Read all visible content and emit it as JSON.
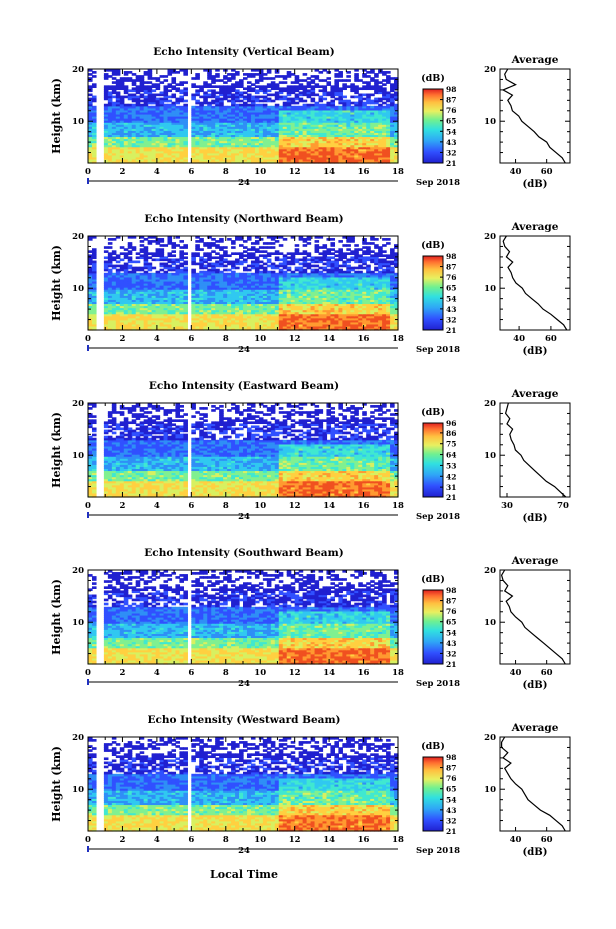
{
  "figure": {
    "x_axis_label": "Local Time",
    "date_label": "Sep 2018",
    "day_label": "24",
    "colorbar_unit": "(dB)",
    "average_title": "Average",
    "average_unit": "(dB)"
  },
  "chart_data": [
    {
      "type": "heatmap",
      "title": "Echo Intensity (Vertical Beam)",
      "ylabel": "Height (km)",
      "xlim": [
        0,
        18
      ],
      "ylim": [
        2,
        20
      ],
      "x_ticks": [
        0,
        2,
        4,
        6,
        8,
        10,
        12,
        14,
        16,
        18
      ],
      "y_ticks": [
        10,
        20
      ],
      "data_gaps_hours": [
        [
          0.55,
          0.85
        ],
        [
          5.8,
          6.1
        ]
      ],
      "colorbar": {
        "ticks": [
          21,
          32,
          43,
          54,
          65,
          76,
          87,
          98
        ],
        "range": [
          21,
          98
        ]
      },
      "average_profile": {
        "xticks": [
          40,
          60
        ],
        "xlim": [
          30,
          75
        ],
        "height_km": [
          2,
          3,
          4,
          5,
          6,
          7,
          8,
          9,
          10,
          11,
          12,
          13,
          14,
          15,
          16,
          17,
          18,
          19,
          20
        ],
        "intensity_db": [
          72,
          70,
          66,
          62,
          60,
          55,
          52,
          48,
          44,
          42,
          38,
          37,
          35,
          38,
          32,
          40,
          34,
          33,
          35
        ]
      }
    },
    {
      "type": "heatmap",
      "title": "Echo Intensity (Northward Beam)",
      "ylabel": "Height (km)",
      "xlim": [
        0,
        18
      ],
      "ylim": [
        2,
        20
      ],
      "x_ticks": [
        0,
        2,
        4,
        6,
        8,
        10,
        12,
        14,
        16,
        18
      ],
      "y_ticks": [
        10,
        20
      ],
      "data_gaps_hours": [
        [
          0.55,
          0.85
        ],
        [
          5.8,
          6.1
        ]
      ],
      "colorbar": {
        "ticks": [
          21,
          32,
          43,
          54,
          65,
          76,
          87,
          98
        ],
        "range": [
          21,
          98
        ]
      },
      "average_profile": {
        "xticks": [
          40,
          60
        ],
        "xlim": [
          28,
          72
        ],
        "height_km": [
          2,
          3,
          4,
          5,
          6,
          7,
          8,
          9,
          10,
          11,
          12,
          13,
          14,
          15,
          16,
          17,
          18,
          19,
          20
        ],
        "intensity_db": [
          70,
          68,
          64,
          60,
          55,
          52,
          48,
          44,
          42,
          38,
          36,
          35,
          33,
          36,
          32,
          34,
          31,
          30,
          32
        ]
      }
    },
    {
      "type": "heatmap",
      "title": "Echo Intensity (Eastward Beam)",
      "ylabel": "Height (km)",
      "xlim": [
        0,
        18
      ],
      "ylim": [
        2,
        20
      ],
      "x_ticks": [
        0,
        2,
        4,
        6,
        8,
        10,
        12,
        14,
        16,
        18
      ],
      "y_ticks": [
        10,
        20
      ],
      "data_gaps_hours": [
        [
          0.55,
          0.85
        ],
        [
          5.8,
          6.1
        ]
      ],
      "colorbar": {
        "ticks": [
          21,
          31,
          42,
          53,
          64,
          75,
          86,
          96
        ],
        "range": [
          21,
          96
        ]
      },
      "average_profile": {
        "xticks": [
          30,
          70
        ],
        "xlim": [
          25,
          75
        ],
        "height_km": [
          2,
          3,
          4,
          5,
          6,
          7,
          8,
          9,
          10,
          11,
          12,
          13,
          14,
          15,
          16,
          17,
          18,
          19,
          20
        ],
        "intensity_db": [
          72,
          68,
          64,
          58,
          54,
          50,
          46,
          42,
          40,
          36,
          35,
          33,
          32,
          34,
          30,
          32,
          29,
          30,
          31
        ]
      }
    },
    {
      "type": "heatmap",
      "title": "Echo Intensity (Southward Beam)",
      "ylabel": "Height (km)",
      "xlim": [
        0,
        18
      ],
      "ylim": [
        2,
        20
      ],
      "x_ticks": [
        0,
        2,
        4,
        6,
        8,
        10,
        12,
        14,
        16,
        18
      ],
      "y_ticks": [
        10,
        20
      ],
      "data_gaps_hours": [
        [
          0.55,
          0.85
        ],
        [
          5.8,
          6.1
        ]
      ],
      "colorbar": {
        "ticks": [
          21,
          32,
          43,
          54,
          65,
          76,
          87,
          98
        ],
        "range": [
          21,
          98
        ]
      },
      "average_profile": {
        "xticks": [
          40,
          60
        ],
        "xlim": [
          30,
          75
        ],
        "height_km": [
          2,
          3,
          4,
          5,
          6,
          7,
          8,
          9,
          10,
          11,
          12,
          13,
          14,
          15,
          16,
          17,
          18,
          19,
          20
        ],
        "intensity_db": [
          72,
          70,
          66,
          62,
          58,
          54,
          50,
          46,
          44,
          40,
          37,
          36,
          34,
          38,
          33,
          35,
          32,
          31,
          33
        ]
      }
    },
    {
      "type": "heatmap",
      "title": "Echo Intensity (Westward Beam)",
      "ylabel": "Height (km)",
      "xlim": [
        0,
        18
      ],
      "ylim": [
        2,
        20
      ],
      "x_ticks": [
        0,
        2,
        4,
        6,
        8,
        10,
        12,
        14,
        16,
        18
      ],
      "y_ticks": [
        10,
        20
      ],
      "data_gaps_hours": [
        [
          0.55,
          0.85
        ],
        [
          5.8,
          6.1
        ]
      ],
      "colorbar": {
        "ticks": [
          21,
          32,
          43,
          54,
          65,
          76,
          87,
          98
        ],
        "range": [
          21,
          98
        ]
      },
      "average_profile": {
        "xticks": [
          40,
          60
        ],
        "xlim": [
          30,
          75
        ],
        "height_km": [
          2,
          3,
          4,
          5,
          6,
          7,
          8,
          9,
          10,
          11,
          12,
          13,
          14,
          15,
          16,
          17,
          18,
          19,
          20
        ],
        "intensity_db": [
          72,
          70,
          66,
          62,
          56,
          52,
          48,
          46,
          44,
          40,
          37,
          35,
          33,
          37,
          32,
          35,
          31,
          31,
          33
        ]
      }
    }
  ]
}
